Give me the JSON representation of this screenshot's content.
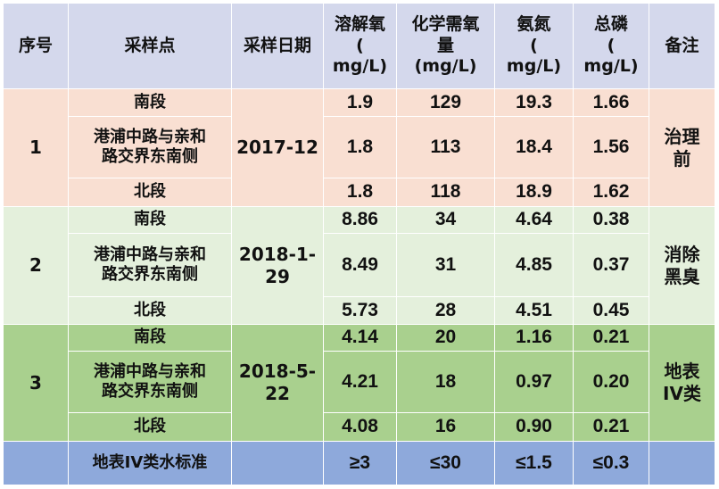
{
  "headers": {
    "no": "序号",
    "site": "采样点",
    "date": "采样日期",
    "do": [
      "溶解氧",
      "(",
      "mg/L)"
    ],
    "cod": [
      "化学需氧",
      "量",
      "(mg/L)"
    ],
    "nh3": [
      "氨氮",
      "(",
      "mg/L)"
    ],
    "tp": [
      "总磷",
      "(",
      "mg/L)"
    ],
    "remark": "备注"
  },
  "groups": [
    {
      "no": "1",
      "date": "2017-12",
      "remark": [
        "治理",
        "前"
      ],
      "rows": [
        {
          "site": [
            "南段"
          ],
          "do": "1.9",
          "cod": "129",
          "nh3": "19.3",
          "tp": "1.66"
        },
        {
          "site": [
            "港浦中路与亲和",
            "路交界东南侧"
          ],
          "do": "1.8",
          "cod": "113",
          "nh3": "18.4",
          "tp": "1.56"
        },
        {
          "site": [
            "北段"
          ],
          "do": "1.8",
          "cod": "118",
          "nh3": "18.9",
          "tp": "1.62"
        }
      ]
    },
    {
      "no": "2",
      "date": [
        "2018-1-",
        "29"
      ],
      "remark": [
        "消除",
        "黑臭"
      ],
      "rows": [
        {
          "site": [
            "南段"
          ],
          "do": "8.86",
          "cod": "34",
          "nh3": "4.64",
          "tp": "0.38"
        },
        {
          "site": [
            "港浦中路与亲和",
            "路交界东南侧"
          ],
          "do": "8.49",
          "cod": "31",
          "nh3": "4.85",
          "tp": "0.37"
        },
        {
          "site": [
            "北段"
          ],
          "do": "5.73",
          "cod": "28",
          "nh3": "4.51",
          "tp": "0.45"
        }
      ]
    },
    {
      "no": "3",
      "date": [
        "2018-5-",
        "22"
      ],
      "remark": [
        "地表",
        "IV类"
      ],
      "rows": [
        {
          "site": [
            "南段"
          ],
          "do": "4.14",
          "cod": "20",
          "nh3": "1.16",
          "tp": "0.21"
        },
        {
          "site": [
            "港浦中路与亲和",
            "路交界东南侧"
          ],
          "do": "4.21",
          "cod": "18",
          "nh3": "0.97",
          "tp": "0.20"
        },
        {
          "site": [
            "北段"
          ],
          "do": "4.08",
          "cod": "16",
          "nh3": "0.90",
          "tp": "0.21"
        }
      ]
    }
  ],
  "standard": {
    "label": "地表IV类水标准",
    "do": "≥3",
    "cod": "≤30",
    "nh3": "≤1.5",
    "tp": "≤0.3"
  },
  "colors": {
    "header": "#d4d8ec",
    "group1": "#f9dfd2",
    "group2": "#e4f0dc",
    "group3": "#a9d08e",
    "standard": "#8ea9db"
  }
}
